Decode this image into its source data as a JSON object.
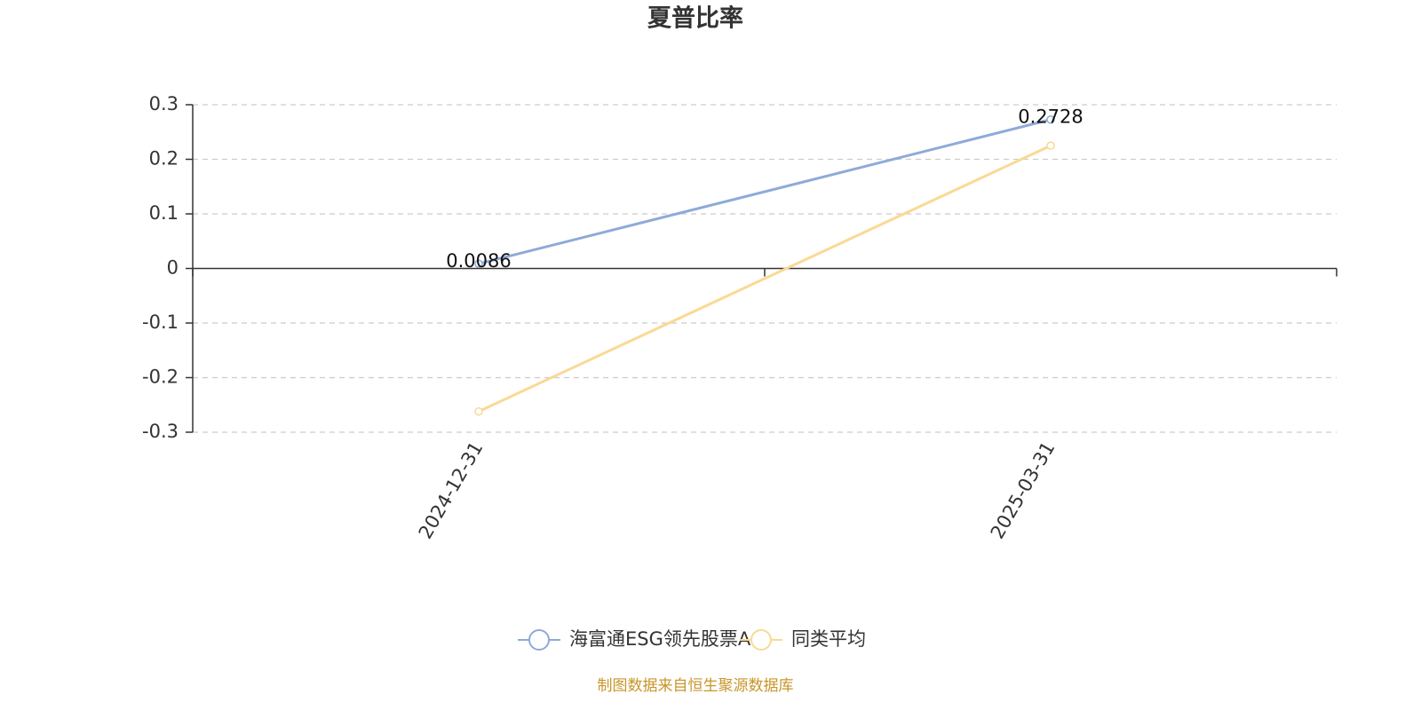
{
  "chart_data": {
    "type": "line",
    "title": "夏普比率",
    "categories": [
      "2024-12-31",
      "2025-03-31"
    ],
    "series": [
      {
        "name": "海富通ESG领先股票A",
        "color": "#8eaad8",
        "values": [
          0.0086,
          0.2728
        ],
        "show_values": true
      },
      {
        "name": "同类平均",
        "color": "#fad994",
        "values": [
          -0.262,
          0.225
        ],
        "show_values": false
      }
    ],
    "ylim": [
      -0.3,
      0.3
    ],
    "yticks": [
      -0.3,
      -0.2,
      -0.1,
      0,
      0.1,
      0.2,
      0.3
    ],
    "grid": true,
    "legend": "bottom",
    "source": "制图数据来自恒生聚源数据库"
  }
}
